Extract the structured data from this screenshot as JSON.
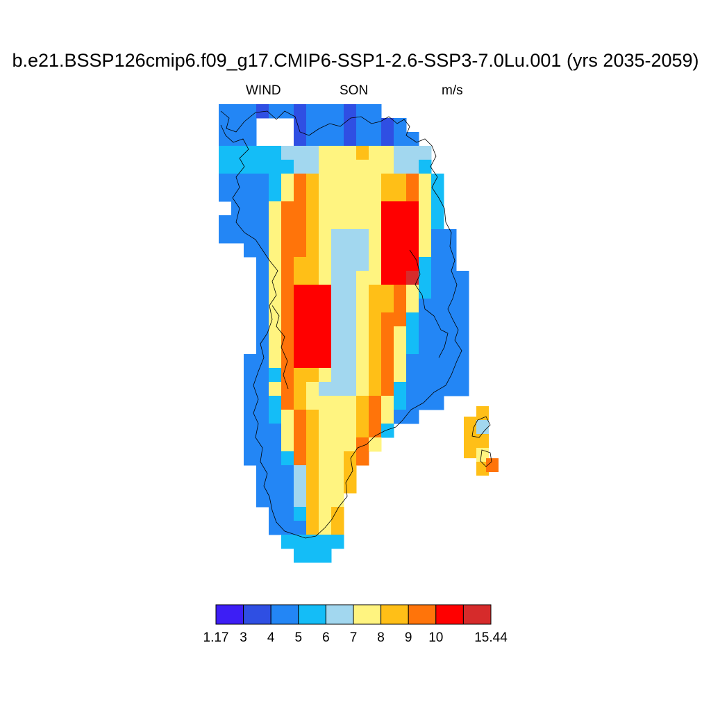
{
  "title": "b.e21.BSSP126cmip6.f09_g17.CMIP6-SSP1-2.6-SSP3-7.0Lu.001 (yrs 2035-2059)",
  "variable": "WIND",
  "season": "SON",
  "units": "m/s",
  "colorbar": {
    "colors": [
      "#3d1ef5",
      "#2f4fe3",
      "#2386f5",
      "#14bdf7",
      "#a2d7ef",
      "#fff480",
      "#ffbf17",
      "#ff740a",
      "#ff0000",
      "#d62b2b"
    ],
    "labels": [
      "1.17",
      "3",
      "4",
      "5",
      "6",
      "7",
      "8",
      "9",
      "10",
      "15.44"
    ]
  }
}
